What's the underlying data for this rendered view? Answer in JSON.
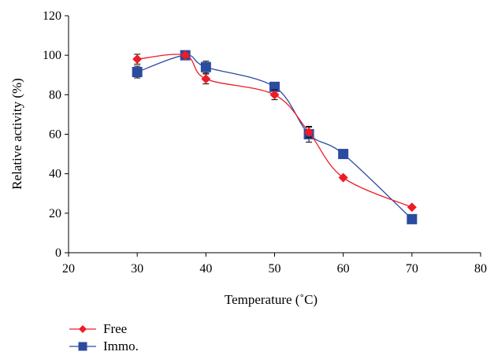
{
  "chart_data": {
    "type": "line",
    "title": "",
    "xlabel": "Temperature (˚C)",
    "ylabel": "Relative activity (%)",
    "xlim": [
      20,
      80
    ],
    "ylim": [
      0,
      120
    ],
    "xticks": [
      20,
      30,
      40,
      50,
      60,
      70,
      80
    ],
    "yticks": [
      0,
      20,
      40,
      60,
      80,
      100,
      120
    ],
    "grid": false,
    "legend_position": "bottom-left",
    "series": [
      {
        "name": "Free",
        "color": "#ee1c25",
        "marker": "diamond",
        "x": [
          30,
          37,
          40,
          50,
          55,
          60,
          70
        ],
        "y": [
          98,
          100,
          88,
          80,
          61,
          38,
          23
        ],
        "error": [
          2.5,
          0,
          2.5,
          2.5,
          2.5,
          0,
          0
        ]
      },
      {
        "name": "Immo.",
        "color": "#2b4ba1",
        "marker": "square",
        "x": [
          30,
          37,
          40,
          50,
          55,
          60,
          70
        ],
        "y": [
          91.5,
          100,
          94,
          84,
          60,
          50,
          17
        ],
        "error": [
          3,
          0,
          3,
          0,
          4,
          0,
          0
        ]
      }
    ]
  }
}
